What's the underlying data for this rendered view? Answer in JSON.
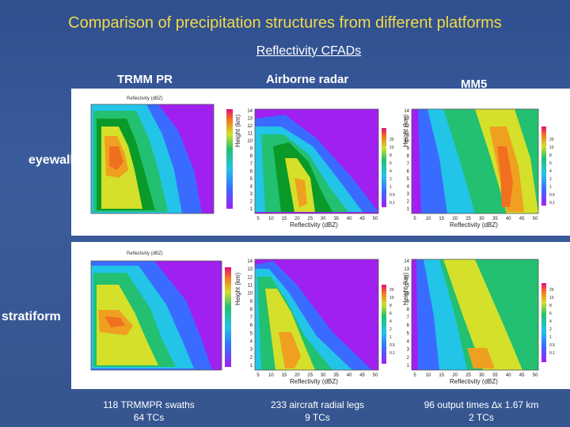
{
  "slide": {
    "title": "Comparison of precipitation structures from different platforms",
    "subtitle": "Reflectivity CFADs"
  },
  "columns": [
    {
      "label": "TRMM PR",
      "footer_line1": "118 TRMMPR swaths",
      "footer_line2": "64 TCs"
    },
    {
      "label": "Airborne radar",
      "footer_line1": "233 aircraft radial legs",
      "footer_line2": "9 TCs"
    },
    {
      "label": "MM5",
      "footer_line1": "96 output times ∆x 1.67 km",
      "footer_line2": "2 TCs"
    }
  ],
  "rows": [
    {
      "label": "eyewall"
    },
    {
      "label": "stratiform"
    }
  ],
  "panel_text": {
    "trmm_top_caption": "Reflectivity (dBZ)",
    "air_ylabel": "Height (km)",
    "air_xlabel": "Reflectivity (dBZ)",
    "mm5_ylabel": "Height (km)",
    "mm5_xlabel": "Reflectivity (dBZ)",
    "trmm_bottom_caption": "Reflectivity (dBZ)",
    "bottom_air_xlabel": "Reflectivity (dBZ)"
  },
  "axis_ticks": {
    "height_ticks": [
      "14",
      "13",
      "12",
      "11",
      "10",
      "9",
      "8",
      "7",
      "6",
      "5",
      "4",
      "3",
      "2",
      "1"
    ],
    "refl_ticks": [
      "5",
      "10",
      "15",
      "20",
      "25",
      "30",
      "35",
      "40",
      "45",
      "50"
    ],
    "colorbar_ticks": [
      "20",
      "10",
      "8",
      "6",
      "4",
      "2",
      "1",
      "0.5",
      "0.1"
    ]
  },
  "colors": {
    "title": "#f2d94a",
    "background": "#35558f",
    "cfad_levels": [
      "#a020f0",
      "#3a6bff",
      "#22c4e8",
      "#22c070",
      "#0a9a2a",
      "#d4e02a",
      "#f0a020",
      "#f07020"
    ]
  }
}
